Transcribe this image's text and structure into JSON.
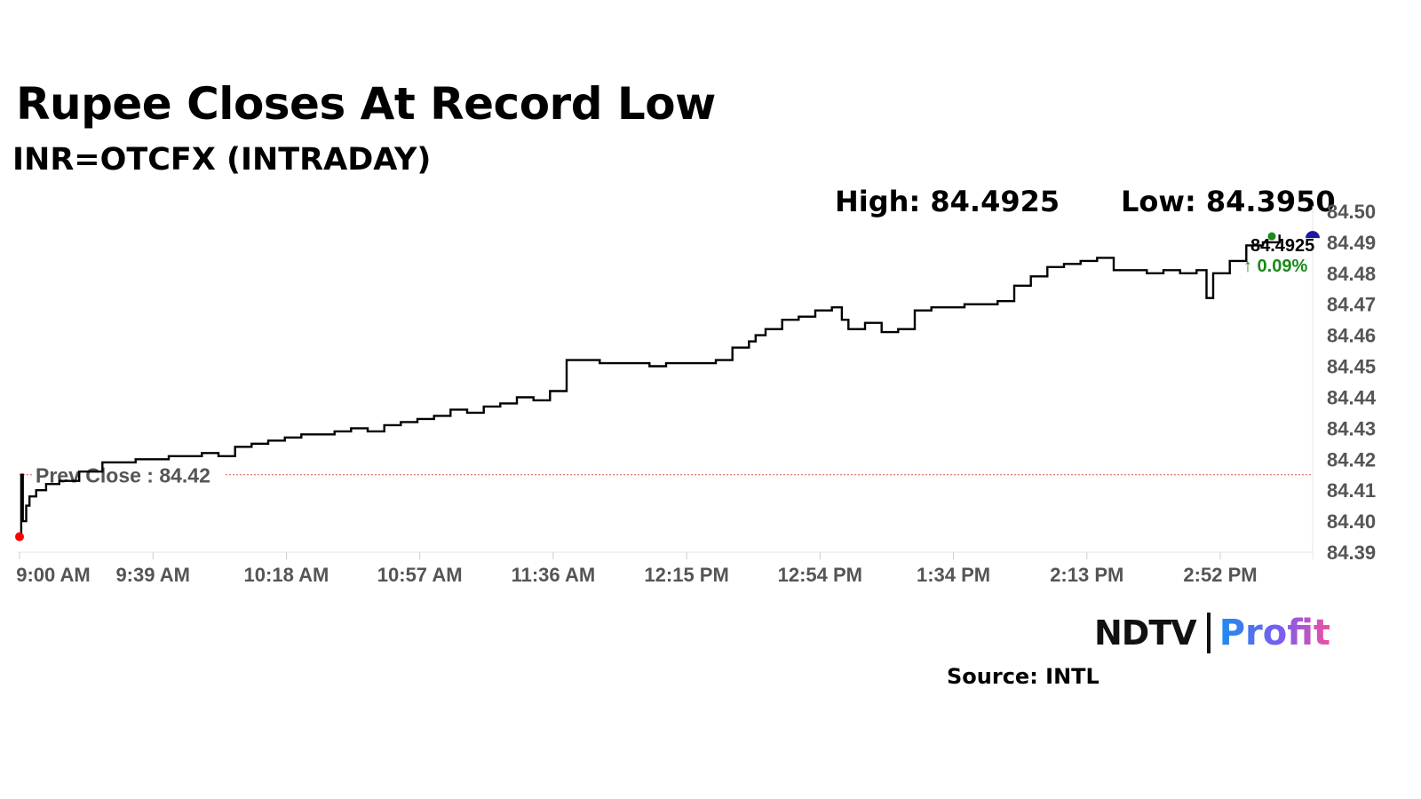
{
  "header": {
    "title": "Rupee Closes At Record Low",
    "subtitle": "INR=OTCFX (INTRADAY)",
    "high_label": "High: 84.4925",
    "low_label": "Low: 84.3950"
  },
  "footer": {
    "brand_left": "NDTV",
    "brand_right": "Profit",
    "source": "Source: INTL"
  },
  "colors": {
    "line": "#000000",
    "prev_close_line": "#d9534f",
    "up": "#1a8a1a",
    "start_dot": "#ff0000",
    "end_dot": "#1a1aa0"
  },
  "chart_data": {
    "type": "line",
    "title": "Rupee Closes At Record Low",
    "subtitle": "INR=OTCFX (INTRADAY)",
    "xlabel": "",
    "ylabel": "",
    "x_ticks": [
      "9:00 AM",
      "9:39 AM",
      "10:18 AM",
      "10:57 AM",
      "11:36 AM",
      "12:15 PM",
      "12:54 PM",
      "1:34 PM",
      "2:13 PM",
      "2:52 PM"
    ],
    "y_ticks": [
      "84.50",
      "84.49",
      "84.48",
      "84.47",
      "84.46",
      "84.45",
      "84.44",
      "84.43",
      "84.42",
      "84.41",
      "84.40",
      "84.39"
    ],
    "ylim": [
      84.39,
      84.5
    ],
    "xlim_minutes": [
      0,
      390
    ],
    "y_axis_position": "right",
    "grid": false,
    "prev_close": {
      "value": 84.415,
      "label": "Prev Close : 84.42"
    },
    "last": {
      "value": "84.4925",
      "change": "↑ 0.09%"
    },
    "series": [
      {
        "x": [
          0,
          0.5,
          1,
          2,
          3,
          5,
          8,
          12,
          18,
          25,
          30,
          35,
          40,
          45,
          50,
          55,
          60,
          65,
          70,
          75,
          80,
          85,
          90,
          95,
          100,
          105,
          110,
          115,
          120,
          125,
          130,
          135,
          140,
          145,
          150,
          155,
          160,
          165,
          170,
          175,
          180,
          185,
          190,
          195,
          200,
          205,
          210,
          215,
          220,
          222,
          225,
          230,
          235,
          240,
          245,
          248,
          250,
          255,
          260,
          265,
          270,
          275,
          280,
          285,
          290,
          295,
          300,
          305,
          310,
          315,
          320,
          325,
          330,
          335,
          340,
          345,
          350,
          355,
          358,
          360,
          365,
          370,
          375,
          380
        ],
        "values": [
          84.395,
          84.415,
          84.4,
          84.405,
          84.408,
          84.41,
          84.412,
          84.413,
          84.416,
          84.419,
          84.419,
          84.42,
          84.42,
          84.421,
          84.421,
          84.422,
          84.421,
          84.424,
          84.425,
          84.426,
          84.427,
          84.428,
          84.428,
          84.429,
          84.43,
          84.429,
          84.431,
          84.432,
          84.433,
          84.434,
          84.436,
          84.435,
          84.437,
          84.438,
          84.44,
          84.439,
          84.442,
          84.452,
          84.452,
          84.451,
          84.451,
          84.451,
          84.45,
          84.451,
          84.451,
          84.451,
          84.452,
          84.456,
          84.458,
          84.46,
          84.462,
          84.465,
          84.466,
          84.468,
          84.469,
          84.465,
          84.462,
          84.464,
          84.461,
          84.462,
          84.468,
          84.469,
          84.469,
          84.47,
          84.47,
          84.471,
          84.476,
          84.479,
          84.482,
          84.483,
          84.484,
          84.485,
          84.481,
          84.481,
          84.48,
          84.481,
          84.48,
          84.481,
          84.472,
          84.48,
          84.484,
          84.489,
          84.49,
          84.4925
        ]
      }
    ]
  }
}
